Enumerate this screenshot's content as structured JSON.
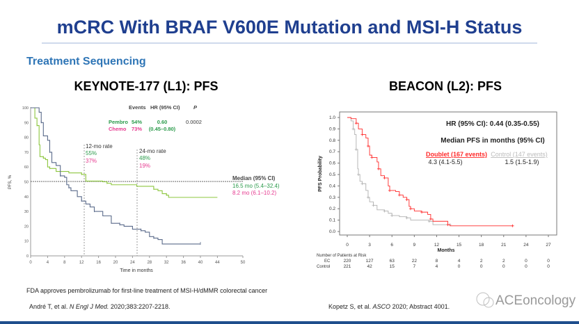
{
  "slide": {
    "title": "mCRC With BRAF V600E Mutation and MSI-H Status",
    "subtitle": "Treatment Sequencing",
    "left_heading": "KEYNOTE-177 (L1): PFS",
    "right_heading": "BEACON (L2): PFS",
    "footnote": "FDA approves pembrolizumab for first-line treatment of MSI-H/dMMR colorectal cancer",
    "ref_left_prefix": "André T, et al. ",
    "ref_left_journal": "N Engl J Med.",
    "ref_left_suffix": " 2020;383:2207-2218.",
    "ref_right_prefix": "Kopetz S, et al. ",
    "ref_right_journal": "ASCO",
    "ref_right_suffix": " 2020; Abstract 4001.",
    "watermark": "ACEoncology",
    "colors": {
      "title": "#1f3f8f",
      "subtitle": "#2e75b6",
      "bar": "#1f4e8c"
    }
  },
  "chart_data": [
    {
      "type": "line",
      "title": "KEYNOTE-177 (L1): PFS",
      "xlabel": "Time in months",
      "ylabel": "PFS, %",
      "xlim": [
        0,
        50
      ],
      "ylim": [
        0,
        100
      ],
      "xticks": [
        "0",
        "4",
        "8",
        "12",
        "16",
        "20",
        "24",
        "28",
        "32",
        "36",
        "40",
        "44",
        "50"
      ],
      "yticks": [
        "0",
        "10",
        "20",
        "30",
        "40",
        "50",
        "60",
        "70",
        "80",
        "90",
        "100"
      ],
      "table_header": {
        "events": "Events",
        "hr": "HR (95% CI)",
        "p": "P"
      },
      "rows": [
        {
          "name": "Pembro",
          "events": "54%",
          "hr": "0.60",
          "p": "0.0002"
        },
        {
          "name": "Chemo",
          "events": "73%",
          "hr": "(0.45–0.80)"
        }
      ],
      "annotations": {
        "rate12_label": "12-mo rate",
        "rate12_pembro": "55%",
        "rate12_chemo": "37%",
        "rate24_label": "24-mo rate",
        "rate24_pembro": "48%",
        "rate24_chemo": "19%",
        "median_label": "Median (95% CI)",
        "median_pembro": "16.5 mo (5.4–32.4)",
        "median_chemo": "8.2 mo (6.1–10.2)"
      },
      "series": [
        {
          "name": "Pembro",
          "color": "#8dc63f",
          "x": [
            0,
            0.5,
            1,
            1.5,
            2,
            2.2,
            3,
            3.5,
            4,
            4.5,
            6,
            9,
            12,
            13,
            17,
            18,
            19,
            25,
            29,
            30,
            31,
            32,
            32.5,
            44
          ],
          "y": [
            100,
            100,
            93,
            88,
            75,
            67,
            66,
            65,
            60,
            59,
            57,
            56,
            55,
            50.5,
            50,
            49,
            48,
            47,
            45,
            44,
            42,
            41,
            39.5,
            39.5
          ]
        },
        {
          "name": "Chemo",
          "color": "#5a6a8a",
          "x": [
            0,
            1.5,
            2,
            2.5,
            3,
            4,
            4.5,
            5,
            6,
            7,
            8,
            8.5,
            9,
            9.5,
            11,
            12,
            13,
            14,
            15,
            17,
            19,
            21,
            22,
            24,
            26,
            27,
            28,
            29,
            30,
            31,
            40
          ],
          "y": [
            100,
            100,
            97,
            90,
            81,
            78,
            70,
            63,
            61,
            54,
            53,
            48,
            46,
            44,
            40,
            37,
            35,
            33,
            30,
            27,
            22,
            21,
            20,
            18,
            17,
            16,
            13,
            12,
            11,
            8,
            8
          ]
        }
      ]
    },
    {
      "type": "line",
      "title": "BEACON (L2): PFS",
      "xlabel": "Months",
      "ylabel": "PFS Probability",
      "xlim": [
        0,
        27
      ],
      "ylim": [
        0,
        1
      ],
      "xticks": [
        "0",
        "3",
        "6",
        "9",
        "12",
        "15",
        "18",
        "21",
        "24",
        "27"
      ],
      "yticks": [
        "0.0",
        "0.1",
        "0.2",
        "0.3",
        "0.4",
        "0.5",
        "0.6",
        "0.7",
        "0.8",
        "0.9",
        "1.0"
      ],
      "hr_text": "HR (95% CI): 0.44 (0.35-0.55)",
      "median_header": "Median PFS in months (95% CI)",
      "legend": [
        {
          "name": "Doublet (167 events)",
          "median": "4.3 (4.1-5.5)"
        },
        {
          "name": "Control (147 events)",
          "median": "1.5 (1.5-1.9)"
        }
      ],
      "risk_table": {
        "title": "Number of Patients at Risk",
        "rows": [
          {
            "label": "EC",
            "values": [
              "220",
              "127",
              "63",
              "22",
              "8",
              "4",
              "2",
              "2",
              "0",
              "0"
            ]
          },
          {
            "label": "Control",
            "values": [
              "221",
              "42",
              "15",
              "7",
              "4",
              "0",
              "0",
              "0",
              "0",
              "0"
            ]
          }
        ]
      },
      "series": [
        {
          "name": "Doublet",
          "color": "#ff2a2a",
          "x": [
            0,
            0.5,
            1.2,
            1.5,
            2,
            2.5,
            2.8,
            3,
            3.3,
            4,
            4.2,
            4.5,
            5,
            5.5,
            5.7,
            6.5,
            7,
            7.5,
            8,
            8.3,
            8.5,
            9,
            10,
            10.8,
            11.2,
            11.5,
            13.5,
            13.8,
            22.2
          ],
          "y": [
            1,
            0.99,
            0.95,
            0.9,
            0.85,
            0.82,
            0.75,
            0.67,
            0.65,
            0.61,
            0.55,
            0.49,
            0.47,
            0.4,
            0.36,
            0.35,
            0.32,
            0.3,
            0.28,
            0.22,
            0.2,
            0.18,
            0.17,
            0.15,
            0.11,
            0.09,
            0.06,
            0.05,
            0.05
          ]
        },
        {
          "name": "Control",
          "color": "#b0b0b0",
          "x": [
            0,
            0.5,
            0.8,
            1,
            1.2,
            1.4,
            1.5,
            1.7,
            2,
            2.5,
            2.8,
            3,
            3.5,
            4,
            5,
            5.5,
            6,
            7,
            8,
            8.5,
            11,
            11.5,
            13.8
          ],
          "y": [
            1,
            0.97,
            0.9,
            0.85,
            0.72,
            0.55,
            0.5,
            0.44,
            0.42,
            0.36,
            0.3,
            0.26,
            0.23,
            0.19,
            0.18,
            0.16,
            0.14,
            0.13,
            0.12,
            0.1,
            0.09,
            0.06,
            0.06
          ]
        }
      ]
    }
  ]
}
